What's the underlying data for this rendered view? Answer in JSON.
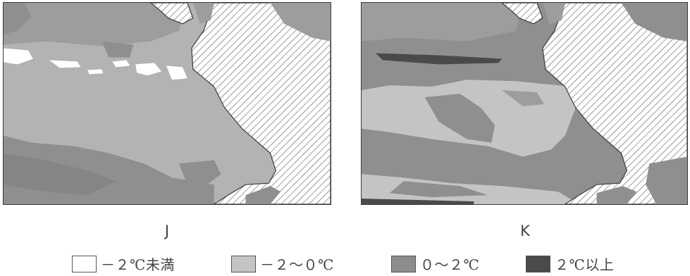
{
  "maps": [
    {
      "id": "J",
      "label": "J"
    },
    {
      "id": "K",
      "label": "K"
    }
  ],
  "legend": [
    {
      "label": "－２℃未満",
      "color": "#ffffff"
    },
    {
      "label": "－２～０℃",
      "color": "#c4c4c4"
    },
    {
      "label": "０～２℃",
      "color": "#8c8c8c"
    },
    {
      "label": "２℃以上",
      "color": "#4a4a4a"
    }
  ],
  "colors": {
    "land_hatch_line": "#4a4a4a",
    "land_fill": "#ffffff",
    "border": "#3a3a3a"
  }
}
